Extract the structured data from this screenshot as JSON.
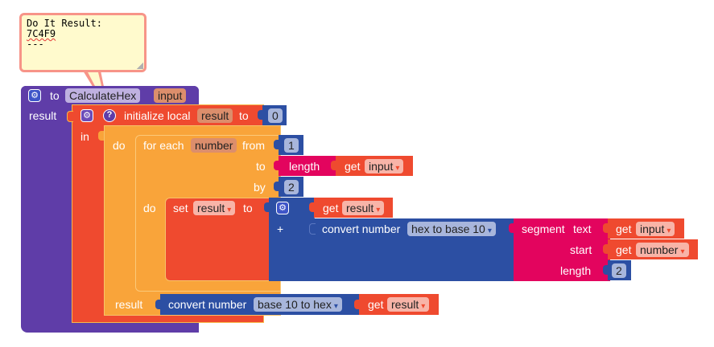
{
  "comment": {
    "title": "Do It Result:",
    "value": "7C4F9",
    "separator": "---"
  },
  "procedure": {
    "to_label": "to",
    "name": "CalculateHex",
    "param": "input",
    "result_label": "result"
  },
  "local_init": {
    "label": "initialize local",
    "var": "result",
    "to_label": "to",
    "value": "0",
    "in_label": "in",
    "do_label": "do",
    "result_label": "result"
  },
  "for_each": {
    "label": "for each",
    "var": "number",
    "from_label": "from",
    "from_value": "1",
    "to_label": "to",
    "by_label": "by",
    "by_value": "2",
    "do_label": "do"
  },
  "length_block": {
    "label": "length",
    "get_label": "get",
    "var": "input"
  },
  "set_block": {
    "set_label": "set",
    "var": "result",
    "to_label": "to"
  },
  "math_add": {
    "plus_label": "+",
    "get_label": "get",
    "var": "result"
  },
  "convert_inner": {
    "label": "convert number",
    "mode": "hex to base 10"
  },
  "segment_block": {
    "label": "segment",
    "text_label": "text",
    "start_label": "start",
    "length_label": "length",
    "text_get": "get",
    "text_var": "input",
    "start_get": "get",
    "start_var": "number",
    "length_value": "2"
  },
  "convert_outer": {
    "label": "convert number",
    "mode": "base 10 to hex",
    "get_label": "get",
    "var": "result"
  },
  "dropdown_glyph": "▾",
  "colors": {
    "procedure": "#5f3da8",
    "variables": "#ef4a2f",
    "control": "#f9a43a",
    "math": "#2c4fa3",
    "text": "#e3045e",
    "comment_bg": "#fffacd",
    "comment_border": "#f79488"
  }
}
